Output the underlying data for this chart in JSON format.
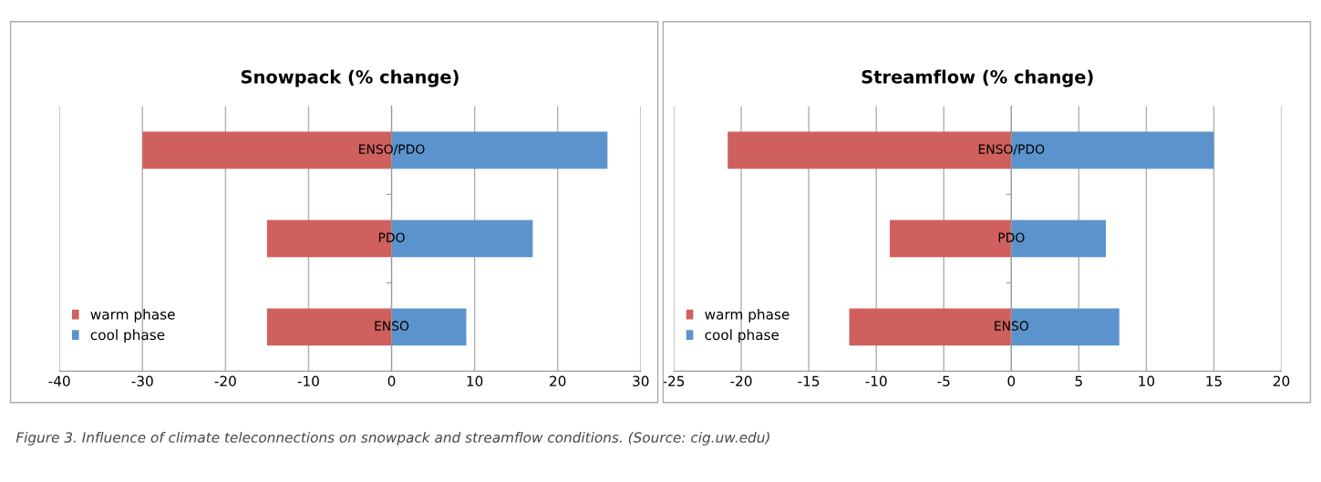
{
  "chart_data": [
    {
      "type": "bar",
      "orientation": "horizontal",
      "stacked": true,
      "title": "Snowpack (% change)",
      "categories": [
        "ENSO/PDO",
        "PDO",
        "ENSO"
      ],
      "series": [
        {
          "name": "warm phase",
          "color": "#d0605e",
          "values": [
            -30,
            -15,
            -15
          ]
        },
        {
          "name": "cool phase",
          "color": "#5b94cc",
          "values": [
            26,
            17,
            9
          ]
        }
      ],
      "xlim": [
        -40,
        30
      ],
      "xticks": [
        -40,
        -30,
        -20,
        -10,
        0,
        10,
        20,
        30
      ],
      "grid": "x",
      "legend": "bottom left",
      "annotations": [
        "Figure 3. Influence of climate teleconnections on snowpack and streamflow conditions. (Source: cig.uw.edu)"
      ]
    },
    {
      "type": "bar",
      "orientation": "horizontal",
      "stacked": true,
      "title": "Streamflow (% change)",
      "categories": [
        "ENSO/PDO",
        "PDO",
        "ENSO"
      ],
      "series": [
        {
          "name": "warm phase",
          "color": "#d0605e",
          "values": [
            -21,
            -9,
            -12
          ]
        },
        {
          "name": "cool phase",
          "color": "#5b94cc",
          "values": [
            15,
            7,
            8
          ]
        }
      ],
      "xlim": [
        -25,
        20
      ],
      "xticks": [
        -25,
        -20,
        -15,
        -10,
        -5,
        0,
        5,
        10,
        15,
        20
      ],
      "grid": "x",
      "legend": "bottom left"
    }
  ]
}
